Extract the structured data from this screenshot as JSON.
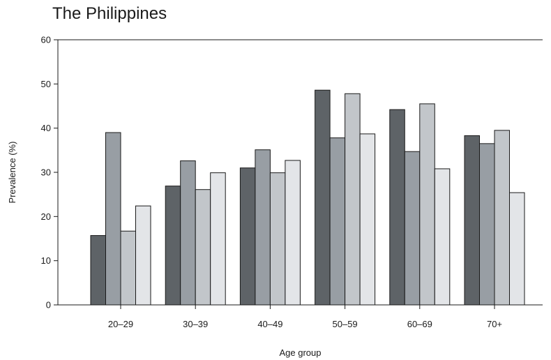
{
  "chart_data": {
    "type": "bar",
    "title": "The Philippines",
    "xlabel": "Age group",
    "ylabel": "Prevalence (%)",
    "ylim": [
      0,
      60
    ],
    "yticks": [
      0,
      10,
      20,
      30,
      40,
      50,
      60
    ],
    "grid": false,
    "legend": "none",
    "categories": [
      "20–29",
      "30–39",
      "40–49",
      "50–59",
      "60–69",
      "70+"
    ],
    "series": [
      {
        "values": [
          15.7,
          26.9,
          31.0,
          48.6,
          44.2,
          38.3
        ],
        "color": "#5e6367"
      },
      {
        "values": [
          39.0,
          32.6,
          35.1,
          37.8,
          34.7,
          36.5
        ],
        "color": "#989ea4"
      },
      {
        "values": [
          16.7,
          26.1,
          29.9,
          47.8,
          45.5,
          39.5
        ],
        "color": "#c2c6ca"
      },
      {
        "values": [
          22.4,
          29.9,
          32.7,
          38.7,
          30.8,
          25.4
        ],
        "color": "#e3e5e8"
      }
    ]
  }
}
